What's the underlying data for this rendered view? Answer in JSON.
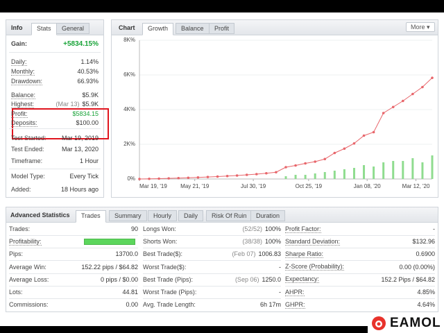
{
  "info": {
    "tabs": [
      "Info",
      "Stats",
      "General"
    ],
    "gain_label": "Gain:",
    "gain": "+5834.15%",
    "gain_color": "#18a338",
    "rows": [
      {
        "label": "Daily:",
        "value": "1.14%"
      },
      {
        "label": "Monthly:",
        "value": "40.53%"
      },
      {
        "label": "Drawdown:",
        "value": "66.93%"
      },
      {
        "label": "Balance:",
        "value": "$5.9K"
      },
      {
        "label": "Highest:",
        "note": "(Mar 13)",
        "value": "$5.9K"
      },
      {
        "label": "Profit:",
        "value": "$5834.15",
        "color": "#18a338"
      },
      {
        "label": "Deposits:",
        "value": "$100.00"
      },
      {
        "label": "Test Started:",
        "value": "Mar 19, 2019"
      },
      {
        "label": "Test Ended:",
        "value": "Mar 13, 2020"
      },
      {
        "label": "Timeframe:",
        "value": "1 Hour"
      },
      {
        "label": "Model Type:",
        "value": "Every Tick"
      },
      {
        "label": "Added:",
        "value": "18 Hours ago"
      }
    ]
  },
  "chart_panel": {
    "title": "Chart",
    "tabs": [
      "Growth",
      "Balance",
      "Profit"
    ],
    "more": "More"
  },
  "chart_data": {
    "type": "line",
    "x": [
      0,
      3,
      6,
      9,
      12,
      15,
      18,
      21,
      24,
      27,
      30,
      33,
      36,
      39,
      42,
      45,
      48,
      51,
      54,
      57,
      60,
      63,
      66,
      69,
      72,
      75,
      78,
      81,
      84,
      87,
      90
    ],
    "xlim": [
      0,
      90
    ],
    "xticks": [
      {
        "value": 0,
        "label": "Mar 19, '19"
      },
      {
        "value": 17,
        "label": "May 21, '19"
      },
      {
        "value": 35,
        "label": "Jul 30, '19"
      },
      {
        "value": 52,
        "label": "Oct 25, '19"
      },
      {
        "value": 70,
        "label": "Jan 08, '20"
      },
      {
        "value": 85,
        "label": "Mar 12, '20"
      }
    ],
    "ylim": [
      0,
      8000
    ],
    "yticks": [
      {
        "value": 0,
        "label": "0%"
      },
      {
        "value": 2000,
        "label": "2K%"
      },
      {
        "value": 4000,
        "label": "4K%"
      },
      {
        "value": 6000,
        "label": "6K%"
      },
      {
        "value": 8000,
        "label": "8K%"
      }
    ],
    "y2lim": [
      0,
      100
    ],
    "grid": true,
    "series": [
      {
        "color": "#e8666b",
        "values": [
          0,
          10,
          20,
          35,
          50,
          70,
          90,
          115,
          140,
          170,
          200,
          240,
          280,
          330,
          390,
          680,
          780,
          900,
          1000,
          1150,
          1500,
          1750,
          2050,
          2500,
          2700,
          3800,
          4150,
          4500,
          4900,
          5300,
          5834.15
        ]
      },
      {
        "type": "bar",
        "axis": "y2",
        "color": "#8fdc8f",
        "x": [
          45,
          48,
          51,
          54,
          57,
          60,
          63,
          66,
          69,
          72,
          75,
          78,
          81,
          84,
          87,
          90
        ],
        "values": [
          2,
          3,
          3,
          4,
          5,
          6,
          7,
          8,
          10,
          9,
          12,
          13,
          13,
          15,
          12,
          17
        ]
      }
    ]
  },
  "advanced_statistics": {
    "title": "Advanced Statistics",
    "tabs": [
      "Trades",
      "Summary",
      "Hourly",
      "Daily",
      "Risk Of Ruin",
      "Duration"
    ],
    "columns": [
      [
        {
          "label": "Trades:",
          "value": "90"
        },
        {
          "label": "Profitability:"
        },
        {
          "label": "Pips:",
          "value": "13700.0"
        },
        {
          "label": "Average Win:",
          "value": "152.22 pips / $64.82"
        },
        {
          "label": "Average Loss:",
          "value": "0 pips / $0.00"
        },
        {
          "label": "Lots:",
          "value": "44.81"
        },
        {
          "label": "Commissions:",
          "value": "0.00"
        }
      ],
      [
        {
          "label": "Longs Won:",
          "note": "(52/52)",
          "value": "100%"
        },
        {
          "label": "Shorts Won:",
          "note": "(38/38)",
          "value": "100%"
        },
        {
          "label": "Best Trade($):",
          "note": "(Feb 07)",
          "value": "1006.83"
        },
        {
          "label": "Worst Trade($):",
          "value": "-"
        },
        {
          "label": "Best Trade (Pips):",
          "note": "(Sep 06)",
          "value": "1250.0"
        },
        {
          "label": "Worst Trade (Pips):",
          "value": "-"
        },
        {
          "label": "Avg. Trade Length:",
          "value": "6h 17m"
        }
      ],
      [
        {
          "label": "Profit Factor:",
          "value": "-"
        },
        {
          "label": "Standard Deviation:",
          "value": "$132.96"
        },
        {
          "label": "Sharpe Ratio:",
          "value": "0.6900"
        },
        {
          "label": "Z-Score (Probability):",
          "value": "0.00 (0.00%)"
        },
        {
          "label": "Expectancy:",
          "value": "152.2 Pips / $64.82"
        },
        {
          "label": "AHPR:",
          "value": "4.85%"
        },
        {
          "label": "GHPR:",
          "value": "4.64%"
        }
      ]
    ]
  },
  "watermark": "EAMOL"
}
